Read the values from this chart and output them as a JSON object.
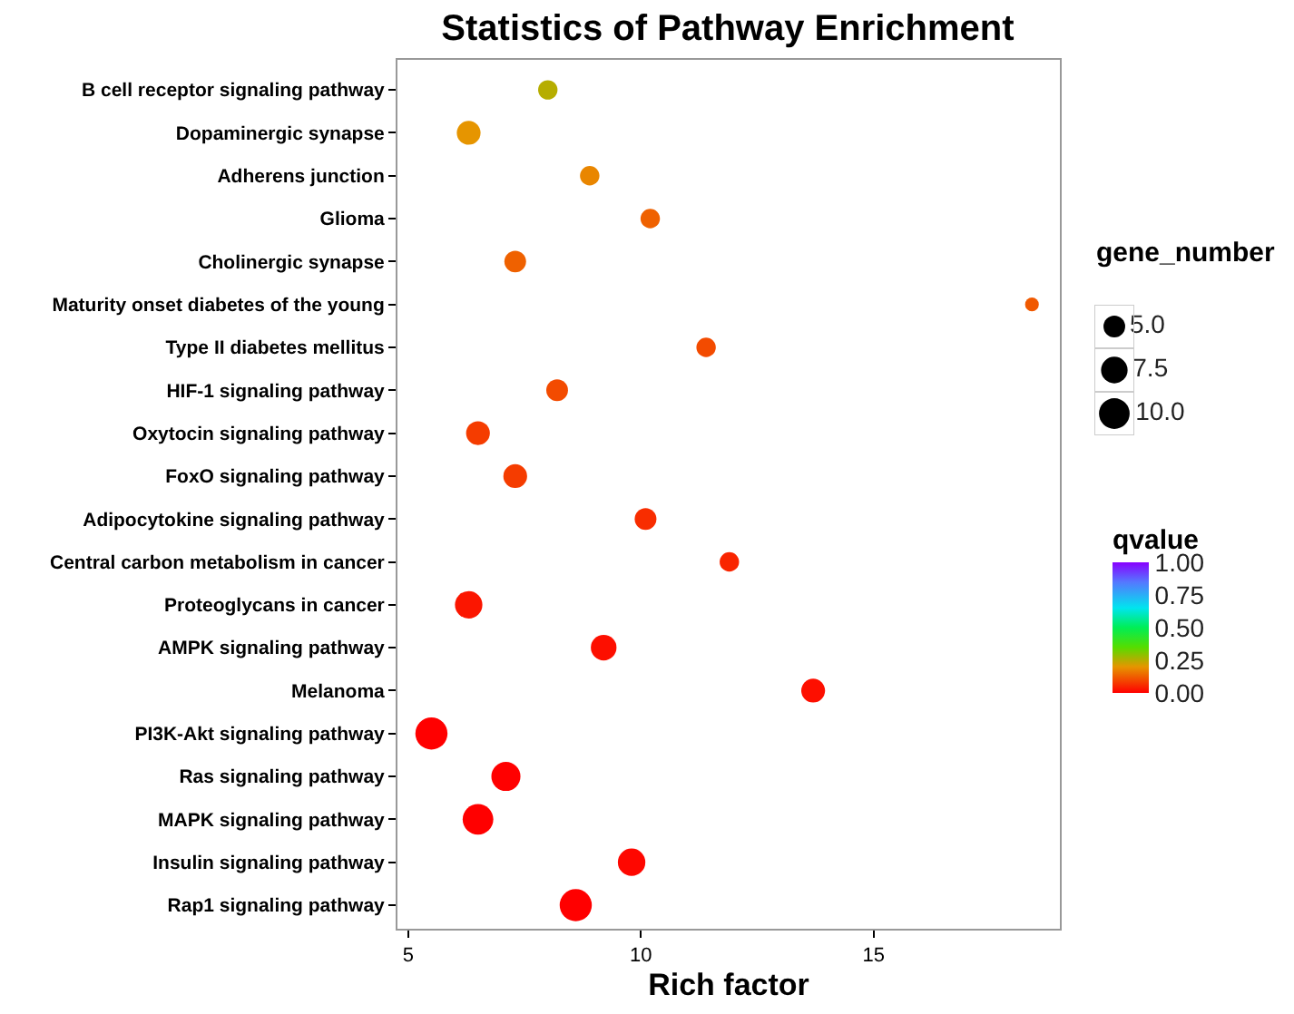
{
  "chart_data": {
    "type": "bubble",
    "orientation": "horizontal",
    "title": "Statistics of Pathway Enrichment",
    "xlabel": "Rich factor",
    "legend_title": "gene_number",
    "clabel": "qvalue",
    "categories": [
      "B cell receptor signaling pathway",
      "Dopaminergic synapse",
      "Adherens junction",
      "Glioma",
      "Cholinergic synapse",
      "Maturity onset diabetes of the young",
      "Type II diabetes mellitus",
      "HIF-1 signaling pathway",
      "Oxytocin signaling pathway",
      "FoxO signaling pathway",
      "Adipocytokine signaling pathway",
      "Central carbon metabolism in cancer",
      "Proteoglycans in cancer",
      "AMPK signaling pathway",
      "Melanoma",
      "PI3K-Akt signaling pathway",
      "Ras signaling pathway",
      "MAPK signaling pathway",
      "Insulin signaling pathway",
      "Rap1 signaling pathway"
    ],
    "values": [
      8.0,
      6.3,
      8.9,
      10.2,
      7.3,
      18.4,
      11.4,
      8.2,
      6.5,
      7.3,
      10.1,
      11.9,
      6.3,
      9.2,
      13.7,
      5.5,
      7.1,
      6.5,
      9.8,
      8.6
    ],
    "sizes": [
      4,
      6,
      4,
      4,
      5,
      2,
      4,
      5,
      6,
      6,
      5,
      4,
      8,
      7,
      6,
      11,
      9,
      10,
      8,
      11
    ],
    "cvalues": [
      0.25,
      0.2,
      0.18,
      0.13,
      0.13,
      0.12,
      0.1,
      0.1,
      0.08,
      0.08,
      0.06,
      0.05,
      0.03,
      0.02,
      0.02,
      0.0,
      0.0,
      0.0,
      0.01,
      0.0
    ],
    "size_legend": [
      {
        "value": 5,
        "label": "5.0"
      },
      {
        "value": 7.5,
        "label": "7.5"
      },
      {
        "value": 10,
        "label": "10.0"
      }
    ],
    "xlim": [
      4.77,
      19.0
    ],
    "xticks": [
      5,
      10,
      15
    ],
    "clim": [
      0,
      1
    ],
    "cticks": [
      {
        "value": 0,
        "label": "0.00"
      },
      {
        "value": 0.25,
        "label": "0.25"
      },
      {
        "value": 0.5,
        "label": "0.50"
      },
      {
        "value": 0.75,
        "label": "0.75"
      },
      {
        "value": 1,
        "label": "1.00"
      }
    ]
  }
}
